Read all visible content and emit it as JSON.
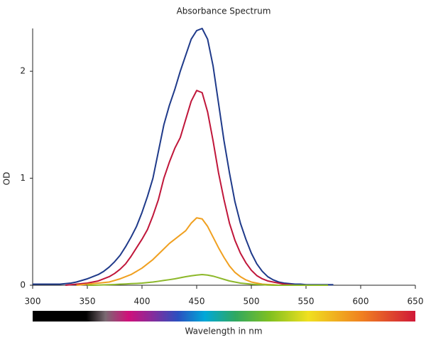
{
  "chart_data": {
    "type": "line",
    "title": "Absorbance Spectrum",
    "x_label": "Wavelength in nm",
    "y_label": "OD",
    "x": [
      300,
      305,
      310,
      315,
      320,
      325,
      330,
      335,
      340,
      345,
      350,
      355,
      360,
      365,
      370,
      375,
      380,
      385,
      390,
      395,
      400,
      405,
      410,
      415,
      420,
      425,
      430,
      435,
      440,
      445,
      450,
      455,
      460,
      465,
      470,
      475,
      480,
      485,
      490,
      495,
      500,
      505,
      510,
      515,
      520,
      525,
      530,
      535,
      540,
      545,
      550,
      555,
      560,
      565,
      570,
      575
    ],
    "series": [
      {
        "color": "#1f3a8a",
        "values": [
          0.01,
          0.01,
          0.01,
          0.01,
          0.01,
          0.01,
          0.015,
          0.02,
          0.03,
          0.045,
          0.06,
          0.08,
          0.1,
          0.13,
          0.17,
          0.22,
          0.28,
          0.36,
          0.45,
          0.55,
          0.68,
          0.83,
          1.0,
          1.25,
          1.5,
          1.68,
          1.83,
          2.0,
          2.15,
          2.3,
          2.38,
          2.4,
          2.3,
          2.05,
          1.7,
          1.35,
          1.05,
          0.78,
          0.58,
          0.43,
          0.3,
          0.2,
          0.13,
          0.08,
          0.05,
          0.03,
          0.02,
          0.015,
          0.01,
          0.01,
          0.005,
          0.005,
          0.005,
          0.005,
          0.005,
          0.005
        ]
      },
      {
        "color": "#c0163a",
        "values": [
          null,
          null,
          null,
          null,
          null,
          null,
          0,
          0.005,
          0.01,
          0.015,
          0.02,
          0.03,
          0.04,
          0.06,
          0.08,
          0.11,
          0.15,
          0.2,
          0.27,
          0.35,
          0.43,
          0.52,
          0.65,
          0.8,
          1.0,
          1.15,
          1.28,
          1.38,
          1.55,
          1.72,
          1.82,
          1.8,
          1.62,
          1.35,
          1.05,
          0.8,
          0.58,
          0.42,
          0.3,
          0.21,
          0.14,
          0.09,
          0.06,
          0.04,
          0.03,
          0.02,
          0.01,
          0.005,
          0,
          0,
          0,
          0,
          0,
          0,
          0,
          null
        ]
      },
      {
        "color": "#f0a020",
        "values": [
          null,
          null,
          null,
          null,
          null,
          null,
          null,
          null,
          0,
          0.005,
          0.01,
          0.015,
          0.02,
          0.025,
          0.03,
          0.045,
          0.06,
          0.08,
          0.1,
          0.13,
          0.16,
          0.2,
          0.24,
          0.29,
          0.34,
          0.39,
          0.43,
          0.47,
          0.51,
          0.58,
          0.63,
          0.62,
          0.55,
          0.45,
          0.35,
          0.26,
          0.18,
          0.12,
          0.08,
          0.05,
          0.03,
          0.02,
          0.01,
          0.007,
          0.005,
          0,
          0,
          0,
          0,
          0,
          0,
          0,
          0,
          0,
          0,
          null
        ]
      },
      {
        "color": "#8db82a",
        "values": [
          null,
          null,
          null,
          null,
          null,
          null,
          null,
          null,
          null,
          null,
          0,
          0,
          0.002,
          0.003,
          0.005,
          0.007,
          0.01,
          0.012,
          0.015,
          0.017,
          0.02,
          0.025,
          0.03,
          0.037,
          0.045,
          0.052,
          0.06,
          0.07,
          0.08,
          0.088,
          0.095,
          0.1,
          0.095,
          0.085,
          0.07,
          0.055,
          0.04,
          0.03,
          0.02,
          0.015,
          0.01,
          0.007,
          0.005,
          0.002,
          0,
          0,
          0,
          0,
          0,
          0,
          0,
          0,
          0,
          0,
          0,
          null
        ]
      }
    ],
    "xlim": [
      300,
      650
    ],
    "xticks": [
      300,
      350,
      400,
      450,
      500,
      550,
      600,
      650
    ],
    "ylim": [
      0,
      2.4
    ],
    "yticks": [
      0,
      1,
      2
    ],
    "grid": false
  }
}
